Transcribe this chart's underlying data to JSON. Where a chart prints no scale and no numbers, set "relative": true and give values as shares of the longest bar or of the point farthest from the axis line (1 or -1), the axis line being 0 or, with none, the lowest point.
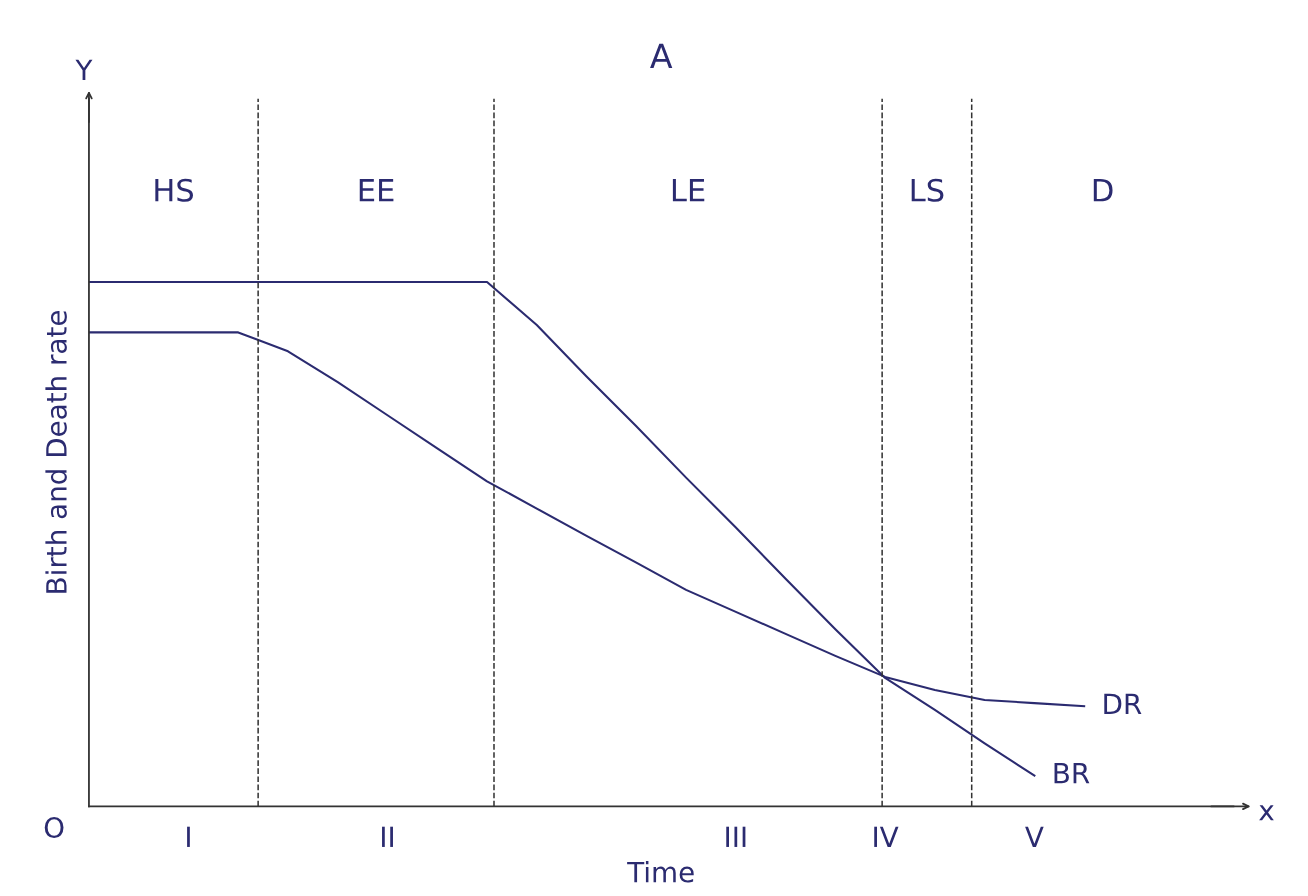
{
  "chart_data": {
    "type": "line",
    "title": "A",
    "xlabel": "Time",
    "ylabel": "Birth and Death rate",
    "relative": true,
    "legend": false,
    "marker": "none",
    "line_style": "solid",
    "categories": [
      null,
      null,
      "I",
      null,
      null,
      null,
      "II",
      null,
      null,
      null,
      null,
      null,
      null,
      "III",
      null,
      null,
      "IV",
      null,
      null,
      "V",
      null,
      null,
      null
    ],
    "series": [
      {
        "name": "BR",
        "color": "#2b2b70",
        "values": [
          1,
          1,
          1,
          1,
          1,
          1,
          1,
          1,
          1,
          0.918,
          0.82,
          0.725,
          0.627,
          0.532,
          0.434,
          0.338,
          0.245,
          0.184,
          0.12,
          0.059,
          null,
          null,
          null
        ]
      },
      {
        "name": "DR",
        "color": "#2b2b70",
        "values": [
          0.904,
          0.904,
          0.904,
          0.904,
          0.868,
          0.809,
          0.746,
          0.683,
          0.62,
          0.568,
          0.516,
          0.465,
          0.413,
          0.371,
          0.329,
          0.287,
          0.247,
          0.222,
          0.203,
          0.197,
          0.191,
          null,
          null
        ]
      }
    ],
    "annotations": [
      "HS",
      "EE",
      "LE",
      "LS",
      "D",
      "O",
      "x",
      "Y"
    ]
  }
}
